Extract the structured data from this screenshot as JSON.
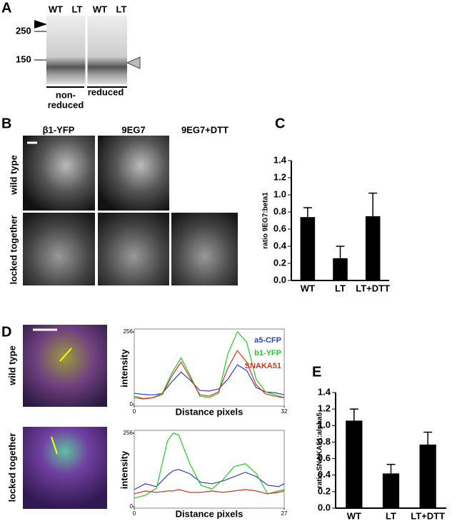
{
  "figure": {
    "panel_letters": [
      "A",
      "B",
      "C",
      "D",
      "E"
    ],
    "blot": {
      "lanes": [
        "WT",
        "LT",
        "WT",
        "LT"
      ],
      "markers": [
        "250",
        "150"
      ],
      "group_nonreduced": [
        "non-",
        "reduced"
      ],
      "group_reduced": "reduced"
    },
    "microscopy_b": {
      "columns": [
        "β1-YFP",
        "9EG7",
        "9EG7+DTT"
      ],
      "rows": [
        "wild type",
        "locked together"
      ]
    },
    "microscopy_d": {
      "rows": [
        "wild type",
        "locked together"
      ]
    }
  },
  "chart_data": [
    {
      "type": "bar",
      "y_label": "ratio 9EG7:beta1",
      "categories": [
        "WT",
        "LT",
        "LT+DTT"
      ],
      "values": [
        0.74,
        0.26,
        0.75
      ],
      "errors": [
        0.11,
        0.14,
        0.27
      ],
      "color": "#000000",
      "ylim": [
        0,
        1.4
      ],
      "yticks": [
        {
          "value": 0,
          "label": "0.0"
        },
        0.2,
        0.4,
        0.6,
        0.8,
        {
          "value": 1,
          "label": "1.0"
        },
        1.2,
        1.4
      ]
    },
    {
      "type": "bar",
      "y_label": "ratio SNAKA51:alpha5",
      "categories": [
        "WT",
        "LT",
        "LT+DTT"
      ],
      "values": [
        1.06,
        0.42,
        0.77
      ],
      "errors": [
        0.14,
        0.11,
        0.15
      ],
      "color": "#000000",
      "ylim": [
        0,
        1.4
      ],
      "yticks": [
        {
          "value": 0,
          "label": "0.0"
        },
        0.2,
        0.4,
        0.6,
        0.8,
        {
          "value": 1,
          "label": "1.0"
        },
        1.2,
        1.4
      ]
    },
    {
      "type": "line",
      "x_label": "Distance pixels",
      "y_label": "intensity",
      "legend": "upper right",
      "x": [
        0,
        2,
        4,
        6,
        8,
        10,
        12,
        14,
        16,
        18,
        20,
        22,
        24,
        26,
        28,
        30,
        32
      ],
      "series": [
        {
          "name": "a5-CFP",
          "color": "#2b3fd0",
          "values": [
            40,
            36,
            34,
            40,
            80,
            115,
            85,
            50,
            48,
            55,
            90,
            140,
            120,
            60,
            45,
            42,
            35
          ]
        },
        {
          "name": "b1-YFP",
          "color": "#22cc22",
          "values": [
            30,
            22,
            25,
            40,
            110,
            165,
            100,
            30,
            25,
            40,
            180,
            256,
            220,
            90,
            45,
            35,
            25
          ]
        },
        {
          "name": "SNAKA51",
          "color": "#e03020",
          "values": [
            25,
            20,
            24,
            36,
            100,
            150,
            92,
            35,
            30,
            45,
            130,
            190,
            150,
            70,
            38,
            30,
            24
          ]
        }
      ],
      "xlim": [
        0,
        32
      ],
      "ylim": [
        0,
        256
      ],
      "xticks": [
        0,
        32
      ],
      "yticks": [
        0,
        256
      ]
    },
    {
      "type": "line",
      "x_label": "Distance pixels",
      "y_label": "intensity",
      "x": [
        0,
        2,
        4,
        6,
        7,
        8,
        10,
        12,
        14,
        16,
        18,
        20,
        22,
        24,
        26,
        27
      ],
      "series": [
        {
          "color": "#2b3fd0",
          "values": [
            60,
            80,
            70,
            110,
            125,
            130,
            115,
            85,
            80,
            90,
            105,
            120,
            105,
            75,
            70,
            80
          ]
        },
        {
          "color": "#22cc22",
          "values": [
            30,
            40,
            65,
            230,
            256,
            250,
            150,
            75,
            62,
            95,
            140,
            150,
            115,
            45,
            55,
            60
          ]
        },
        {
          "color": "#e03020",
          "values": [
            45,
            55,
            50,
            55,
            55,
            60,
            50,
            50,
            55,
            50,
            55,
            60,
            55,
            45,
            50,
            55
          ]
        }
      ],
      "xlim": [
        0,
        27
      ],
      "ylim": [
        0,
        256
      ],
      "xticks": [
        0,
        27
      ],
      "yticks": [
        0,
        256
      ]
    }
  ]
}
